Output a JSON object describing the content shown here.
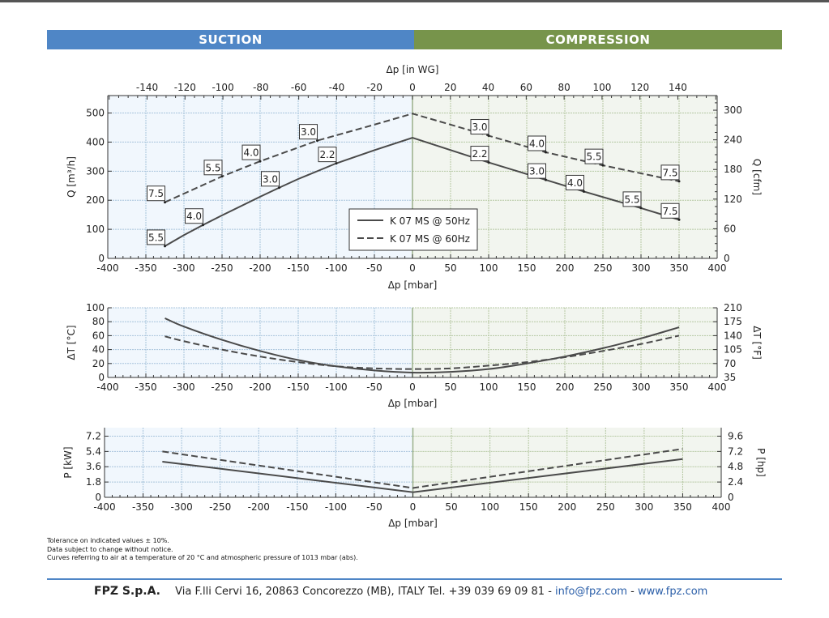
{
  "header": {
    "suction_label": "SUCTION",
    "compression_label": "COMPRESSION",
    "suction_color": "#4f86c6",
    "compression_color": "#77944b"
  },
  "chart_data": [
    {
      "type": "line",
      "name": "flow-chart",
      "title": "",
      "xlabel": "Δp [mbar]",
      "xlabel_top": "Δp [in WG]",
      "ylabel": "Q [m³/h]",
      "ylabel_right": "Q [cfm]",
      "xlim": [
        -400,
        400
      ],
      "ylim": [
        0,
        560
      ],
      "x_ticks": [
        "-400",
        "-350",
        "-300",
        "-250",
        "-200",
        "-150",
        "-100",
        "-50",
        "0",
        "50",
        "100",
        "150",
        "200",
        "250",
        "300",
        "350",
        "400"
      ],
      "x_tick_values": [
        -400,
        -350,
        -300,
        -250,
        -200,
        -150,
        -100,
        -50,
        0,
        50,
        100,
        150,
        200,
        250,
        300,
        350,
        400
      ],
      "x_top_ticks": [
        "-140",
        "-120",
        "-100",
        "-80",
        "-60",
        "-40",
        "-20",
        "0",
        "20",
        "40",
        "60",
        "80",
        "100",
        "120",
        "140"
      ],
      "x_top_tick_values": [
        -140,
        -120,
        -100,
        -80,
        -60,
        -40,
        -20,
        0,
        20,
        40,
        60,
        80,
        100,
        120,
        140
      ],
      "y_ticks": [
        "0",
        "100",
        "200",
        "300",
        "400",
        "500"
      ],
      "y_tick_values": [
        0,
        100,
        200,
        300,
        400,
        500
      ],
      "y_right_ticks": [
        "0",
        "60",
        "120",
        "180",
        "240",
        "300"
      ],
      "y_right_tick_values": [
        0,
        60,
        120,
        180,
        240,
        300
      ],
      "legend": {
        "position": "center-bottom",
        "entries": [
          "K 07 MS @ 50Hz",
          "K 07 MS @ 60Hz"
        ]
      },
      "series": [
        {
          "name": "K 07 MS @ 50Hz",
          "style": "solid",
          "x": [
            -325,
            -300,
            -275,
            -250,
            -200,
            -175,
            -150,
            -100,
            -50,
            0,
            100,
            175,
            225,
            300,
            350
          ],
          "y": [
            42,
            80,
            115,
            148,
            212,
            243,
            273,
            327,
            372,
            415,
            330,
            270,
            230,
            173,
            133
          ],
          "labels": [
            {
              "x": -325,
              "y": 42,
              "text": "5.5"
            },
            {
              "x": -275,
              "y": 115,
              "text": "4.0"
            },
            {
              "x": -175,
              "y": 243,
              "text": "3.0"
            },
            {
              "x": -100,
              "y": 327,
              "text": "2.2"
            },
            {
              "x": 100,
              "y": 330,
              "text": "2.2"
            },
            {
              "x": 175,
              "y": 270,
              "text": "3.0"
            },
            {
              "x": 225,
              "y": 230,
              "text": "4.0"
            },
            {
              "x": 300,
              "y": 173,
              "text": "5.5"
            },
            {
              "x": 350,
              "y": 133,
              "text": "7.5"
            }
          ]
        },
        {
          "name": "K 07 MS @ 60Hz",
          "style": "dashed",
          "x": [
            -325,
            -250,
            -200,
            -125,
            -50,
            0,
            100,
            175,
            250,
            350
          ],
          "y": [
            193,
            282,
            334,
            405,
            460,
            498,
            422,
            365,
            320,
            265
          ],
          "labels": [
            {
              "x": -325,
              "y": 193,
              "text": "7.5"
            },
            {
              "x": -250,
              "y": 282,
              "text": "5.5"
            },
            {
              "x": -200,
              "y": 334,
              "text": "4.0"
            },
            {
              "x": -125,
              "y": 405,
              "text": "3.0"
            },
            {
              "x": 100,
              "y": 422,
              "text": "3.0"
            },
            {
              "x": 175,
              "y": 365,
              "text": "4.0"
            },
            {
              "x": 250,
              "y": 320,
              "text": "5.5"
            },
            {
              "x": 350,
              "y": 265,
              "text": "7.5"
            }
          ]
        }
      ]
    },
    {
      "type": "line",
      "name": "temperature-chart",
      "xlabel": "Δp [mbar]",
      "ylabel": "ΔT [°C]",
      "ylabel_right": "ΔT [°F]",
      "xlim": [
        -400,
        400
      ],
      "ylim": [
        0,
        100
      ],
      "x_ticks": [
        "-400",
        "-350",
        "-300",
        "-250",
        "-200",
        "-150",
        "-100",
        "-50",
        "0",
        "50",
        "100",
        "150",
        "200",
        "250",
        "300",
        "350",
        "400"
      ],
      "x_tick_values": [
        -400,
        -350,
        -300,
        -250,
        -200,
        -150,
        -100,
        -50,
        0,
        50,
        100,
        150,
        200,
        250,
        300,
        350,
        400
      ],
      "y_ticks": [
        "0",
        "20",
        "40",
        "60",
        "80",
        "100"
      ],
      "y_tick_values": [
        0,
        20,
        40,
        60,
        80,
        100
      ],
      "y_right_ticks": [
        "35",
        "70",
        "105",
        "140",
        "175",
        "210"
      ],
      "y_right_tick_values": [
        0,
        20,
        40,
        60,
        80,
        100
      ],
      "series": [
        {
          "name": "K 07 MS @ 50Hz",
          "style": "solid",
          "x": [
            -325,
            -300,
            -250,
            -200,
            -150,
            -100,
            -50,
            0,
            50,
            100,
            150,
            200,
            250,
            300,
            350
          ],
          "y": [
            85,
            73,
            54,
            38,
            25,
            16,
            10,
            7,
            8,
            12,
            20,
            30,
            42,
            56,
            72
          ]
        },
        {
          "name": "K 07 MS @ 60Hz",
          "style": "dashed",
          "x": [
            -325,
            -300,
            -250,
            -200,
            -150,
            -100,
            -50,
            0,
            50,
            100,
            150,
            200,
            250,
            300,
            350
          ],
          "y": [
            59,
            52,
            40,
            30,
            22,
            16,
            13,
            12,
            13,
            17,
            22,
            29,
            38,
            48,
            60
          ]
        }
      ]
    },
    {
      "type": "line",
      "name": "power-chart",
      "xlabel": "Δp [mbar]",
      "ylabel": "P [kW]",
      "ylabel_right": "P [hp]",
      "xlim": [
        -400,
        400
      ],
      "ylim": [
        0,
        8.2
      ],
      "x_ticks": [
        "-400",
        "-350",
        "-300",
        "-250",
        "-200",
        "-150",
        "-100",
        "-50",
        "0",
        "50",
        "100",
        "150",
        "200",
        "250",
        "300",
        "350",
        "400"
      ],
      "x_tick_values": [
        -400,
        -350,
        -300,
        -250,
        -200,
        -150,
        -100,
        -50,
        0,
        50,
        100,
        150,
        200,
        250,
        300,
        350,
        400
      ],
      "y_ticks": [
        "0",
        "1.8",
        "3.6",
        "5.4",
        "7.2"
      ],
      "y_tick_values": [
        0,
        1.8,
        3.6,
        5.4,
        7.2
      ],
      "y_right_ticks": [
        "0",
        "2.4",
        "4.8",
        "7.2",
        "9.6"
      ],
      "y_right_tick_values": [
        0,
        1.8,
        3.6,
        5.4,
        7.2
      ],
      "series": [
        {
          "name": "K 07 MS @ 50Hz",
          "style": "solid",
          "x": [
            -325,
            0,
            350
          ],
          "y": [
            4.2,
            0.6,
            4.5
          ]
        },
        {
          "name": "K 07 MS @ 60Hz",
          "style": "dashed",
          "x": [
            -325,
            0,
            350
          ],
          "y": [
            5.4,
            1.1,
            5.7
          ]
        }
      ]
    }
  ],
  "notes": [
    "Tolerance on indicated values ± 10%.",
    "Data subject to change without notice.",
    "Curves referring to air at a temperature of 20 °C and atmospheric pressure of 1013 mbar (abs)."
  ],
  "footer": {
    "company": "FPZ S.p.A.",
    "address": "Via F.lli Cervi 16, 20863 Concorezzo (MB), ITALY Tel. +39 039 69 09 81 - ",
    "email": "info@fpz.com",
    "separator": " - ",
    "website": "www.fpz.com",
    "link_color": "#2a5ea8"
  }
}
